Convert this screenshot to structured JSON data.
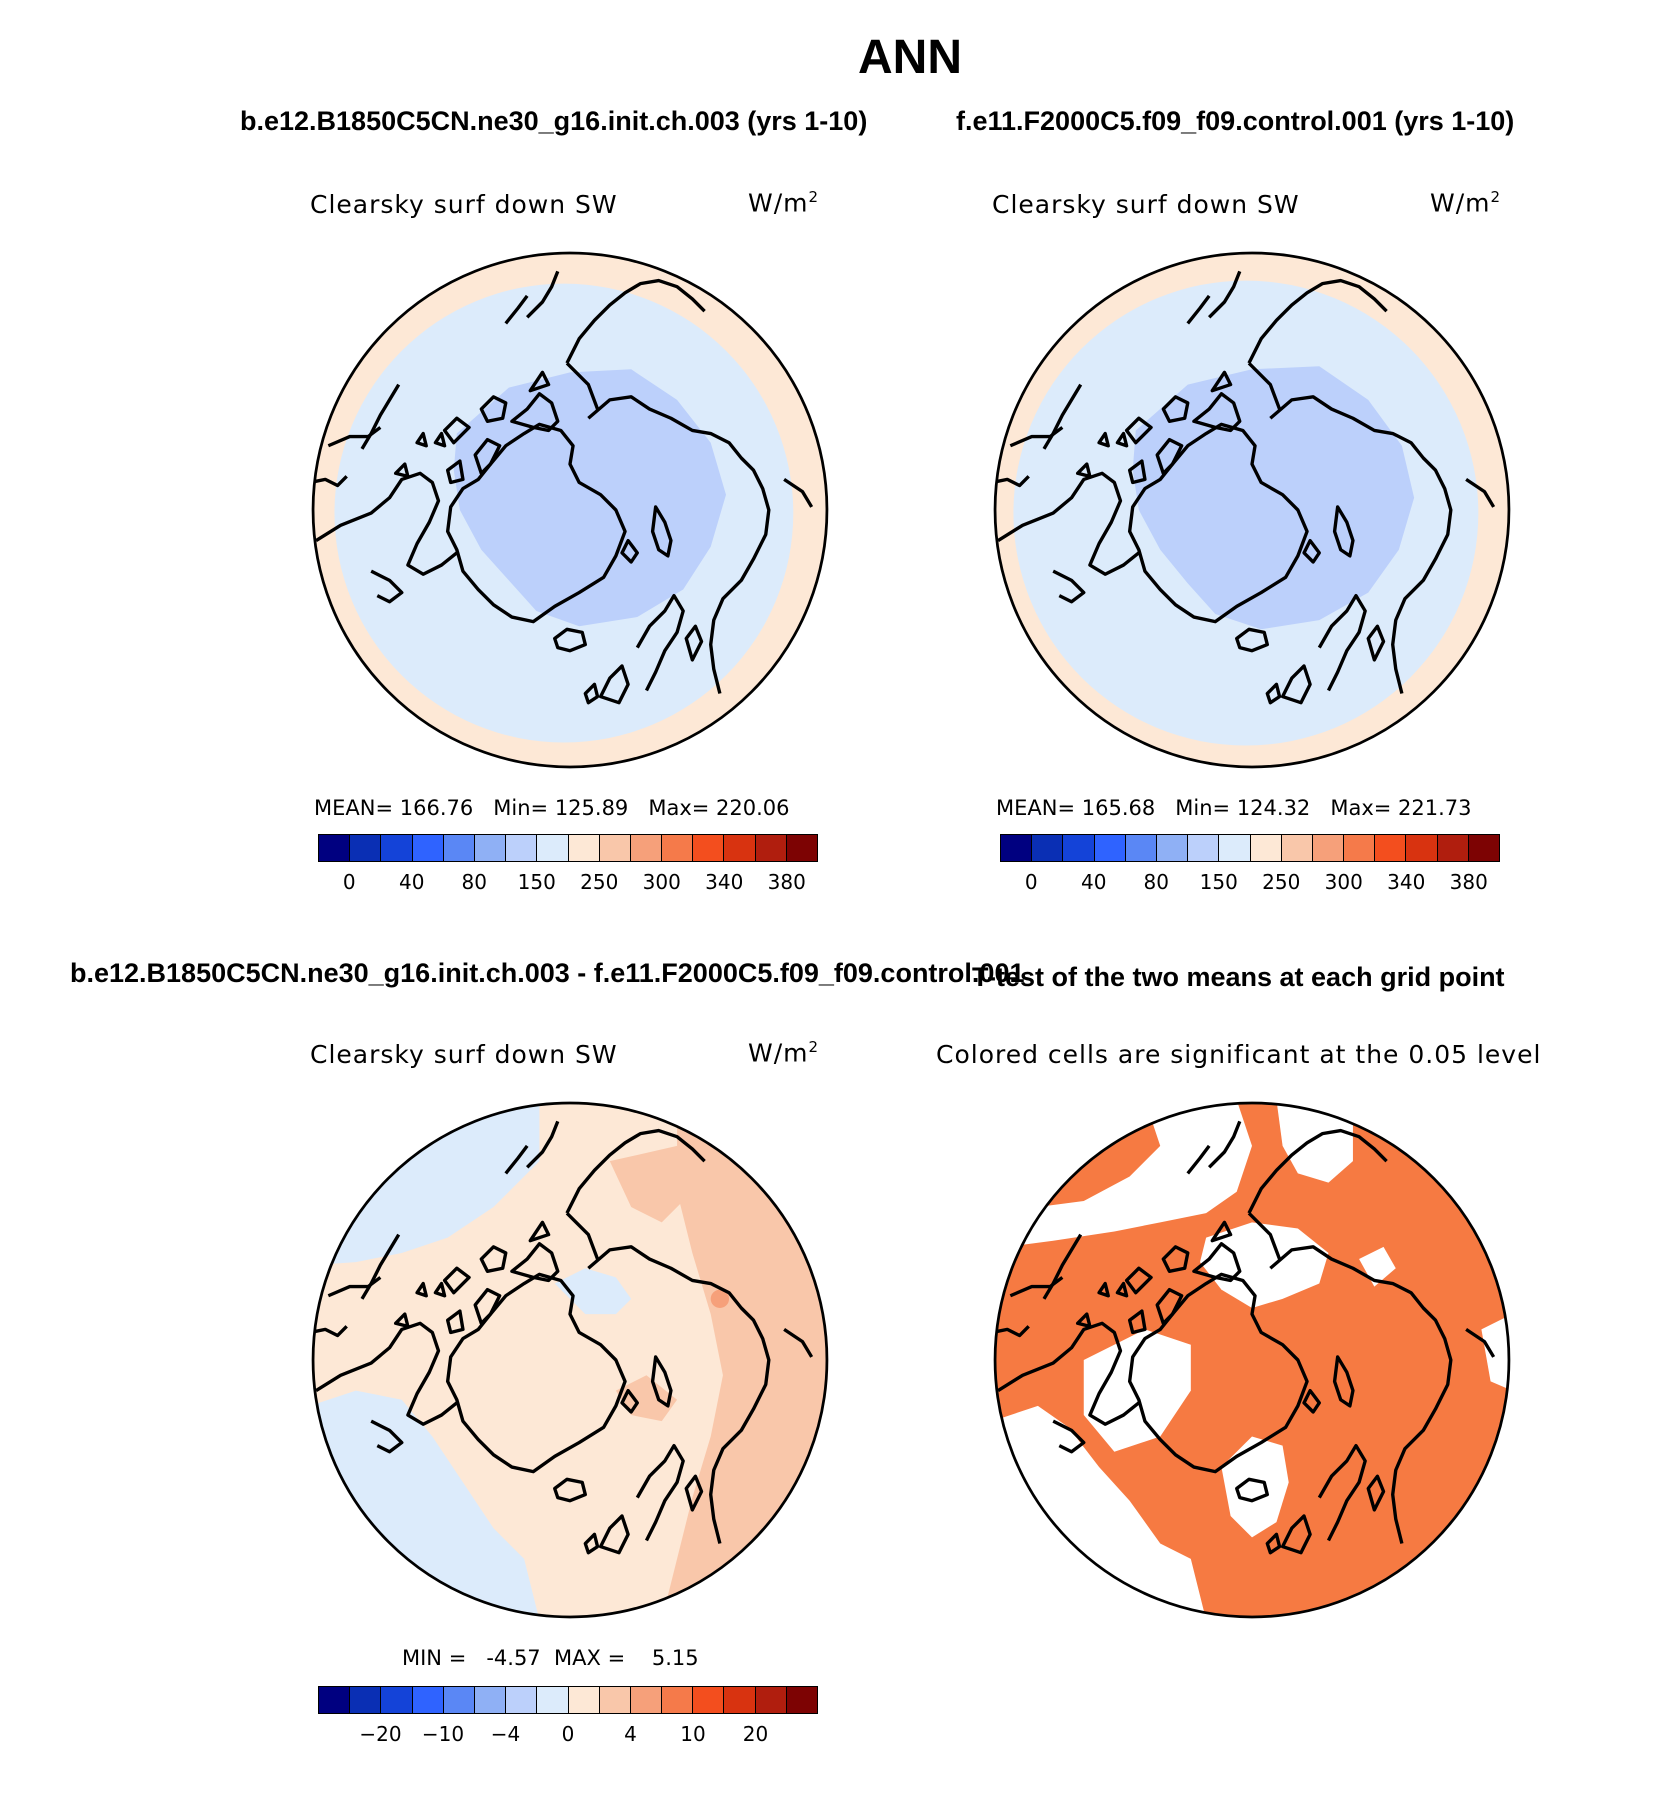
{
  "title": "ANN",
  "panels": {
    "test": {
      "case": "b.e12.B1850C5CN.ne30_g16.init.ch.003 (yrs 1-10)",
      "variable": "Clearsky surf down SW",
      "units": "W/m",
      "units_sup": "2",
      "stats": {
        "mean_label": "MEAN=",
        "mean": "166.76",
        "min_label": "Min=",
        "min": "125.89",
        "max_label": "Max=",
        "max": "220.06"
      }
    },
    "control": {
      "case": "f.e11.F2000C5.f09_f09.control.001 (yrs 1-10)",
      "variable": "Clearsky surf down SW",
      "units": "W/m",
      "units_sup": "2",
      "stats": {
        "mean_label": "MEAN=",
        "mean": "165.68",
        "min_label": "Min=",
        "min": "124.32",
        "max_label": "Max=",
        "max": "221.73"
      }
    },
    "diff": {
      "case": "b.e12.B1850C5CN.ne30_g16.init.ch.003 - f.e11.F2000C5.f09_f09.control.001",
      "variable": "Clearsky surf down SW",
      "units": "W/m",
      "units_sup": "2",
      "stats": {
        "min_label": "MIN =",
        "min": "-4.57",
        "max_label": "MAX =",
        "max": "5.15"
      }
    },
    "ttest": {
      "title": "T-test of the two means at each grid point",
      "subtitle": "Colored cells are significant at the 0.05 level"
    }
  },
  "colorbars": {
    "absolute": {
      "colors": [
        "#000080",
        "#0a2fb4",
        "#1443d8",
        "#2f63ff",
        "#5a87f5",
        "#8fb0f5",
        "#bcd0fb",
        "#dcebfb",
        "#fde8d6",
        "#f9c7aa",
        "#f6a07a",
        "#f57a4a",
        "#f34e1e",
        "#d83310",
        "#b01e0e",
        "#7d0303"
      ],
      "ticks": [
        "0",
        "40",
        "80",
        "150",
        "250",
        "300",
        "340",
        "380"
      ]
    },
    "difference": {
      "colors": [
        "#000080",
        "#0a2fb4",
        "#1443d8",
        "#2f63ff",
        "#5a87f5",
        "#8fb0f5",
        "#bcd0fb",
        "#dcebfb",
        "#fde8d6",
        "#f9c7aa",
        "#f6a07a",
        "#f57a4a",
        "#f34e1e",
        "#d83310",
        "#b01e0e",
        "#7d0303"
      ],
      "ticks": [
        "−20",
        "−10",
        "−4",
        "0",
        "4",
        "10",
        "20"
      ]
    }
  },
  "map_colors": {
    "outer_band": "#fde8d6",
    "mid_level": "#dcebfb",
    "inner_level": "#bcd0fb",
    "diff_pos_light": "#fde8d6",
    "diff_pos_mid": "#f9c7aa",
    "diff_pos_strong": "#f6a07a",
    "diff_neg": "#dcebfb",
    "significant": "#f67a42",
    "not_significant": "#ffffff"
  }
}
